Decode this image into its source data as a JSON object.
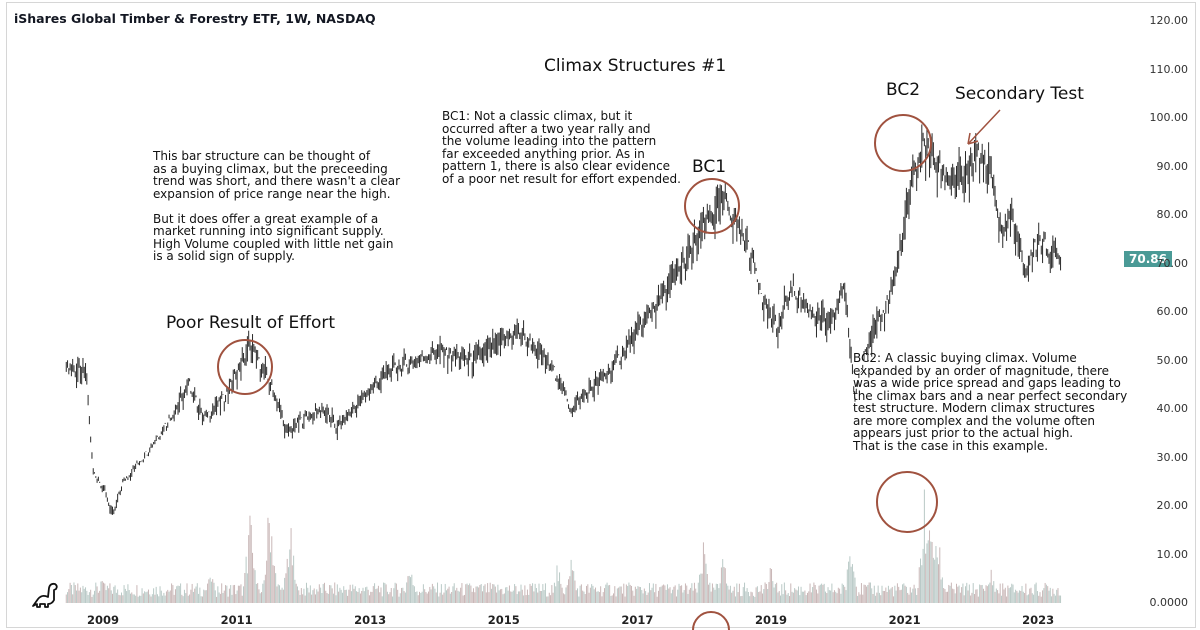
{
  "header": {
    "title": "iShares Global Timber & Forestry ETF, 1W, NASDAQ"
  },
  "annotations": {
    "chart_title": "Climax Structures #1",
    "note1": "This bar structure can be thought of\nas a buying climax, but the preceeding\ntrend was short, and there wasn't a clear\nexpansion of price range near the high.\n\nBut it does offer a great example of a\nmarket running into significant supply.\nHigh Volume coupled with little net gain\nis a solid sign of supply.",
    "note2": "BC1: Not a classic climax, but it\noccurred after a two year rally and\nthe volume leading into the pattern\nfar exceeded anything prior. As in\npattern 1, there is also clear evidence\nof a poor net result for effort expended.",
    "note3": "BC2: A classic buying climax. Volume\nexpanded by an order of magnitude, there\nwas a wide price spread and gaps leading to\nthe climax bars and a near perfect secondary\ntest structure. Modern climax structures\nare more complex and the volume often\nappears just prior to the actual high.\nThat is the case in this example.",
    "label_poor": "Poor Result of Effort",
    "label_bc1": "BC1",
    "label_bc2": "BC2",
    "label_st": "Secondary Test"
  },
  "colors": {
    "bars": "#2a2a2a",
    "volume_up": "#c9b7b7",
    "volume_down": "#b9c9c6",
    "circle": "#a0523f",
    "last_price_bg": "#4a9a96"
  },
  "logo": "tradingview-dino-icon",
  "chart_data": {
    "type": "ohlc",
    "interval": "1W",
    "last_price": "70.86",
    "y_ticks": [
      "120.00",
      "110.00",
      "100.00",
      "90.00",
      "80.00",
      "70.00",
      "60.00",
      "50.00",
      "40.00",
      "30.00",
      "20.00",
      "10.00",
      "0.0000"
    ],
    "ylim": [
      0,
      120
    ],
    "x_ticks": [
      "2009",
      "2011",
      "2013",
      "2015",
      "2017",
      "2019",
      "2021",
      "2023"
    ],
    "xlim": [
      2008.1,
      2023.9
    ],
    "price_path": [
      [
        2008.45,
        49
      ],
      [
        2008.75,
        47
      ],
      [
        2008.85,
        27
      ],
      [
        2009.0,
        24
      ],
      [
        2009.15,
        18
      ],
      [
        2009.3,
        25
      ],
      [
        2009.6,
        30
      ],
      [
        2010.0,
        38
      ],
      [
        2010.3,
        45
      ],
      [
        2010.5,
        38
      ],
      [
        2010.8,
        42
      ],
      [
        2011.1,
        50
      ],
      [
        2011.2,
        53
      ],
      [
        2011.4,
        48
      ],
      [
        2011.6,
        42
      ],
      [
        2011.75,
        35
      ],
      [
        2012.0,
        38
      ],
      [
        2012.3,
        40
      ],
      [
        2012.5,
        36
      ],
      [
        2013.0,
        44
      ],
      [
        2013.3,
        48
      ],
      [
        2013.7,
        50
      ],
      [
        2014.0,
        52
      ],
      [
        2014.5,
        50
      ],
      [
        2015.0,
        54
      ],
      [
        2015.2,
        56
      ],
      [
        2015.5,
        52
      ],
      [
        2015.8,
        47
      ],
      [
        2016.0,
        40
      ],
      [
        2016.3,
        44
      ],
      [
        2016.6,
        48
      ],
      [
        2017.0,
        56
      ],
      [
        2017.5,
        66
      ],
      [
        2017.8,
        72
      ],
      [
        2018.0,
        78
      ],
      [
        2018.3,
        83
      ],
      [
        2018.5,
        78
      ],
      [
        2018.7,
        72
      ],
      [
        2018.9,
        62
      ],
      [
        2019.1,
        56
      ],
      [
        2019.3,
        65
      ],
      [
        2019.6,
        60
      ],
      [
        2019.9,
        57
      ],
      [
        2020.1,
        66
      ],
      [
        2020.25,
        42
      ],
      [
        2020.4,
        52
      ],
      [
        2020.7,
        60
      ],
      [
        2020.9,
        70
      ],
      [
        2021.1,
        86
      ],
      [
        2021.3,
        95
      ],
      [
        2021.4,
        92
      ],
      [
        2021.6,
        88
      ],
      [
        2021.9,
        87
      ],
      [
        2022.1,
        93
      ],
      [
        2022.3,
        88
      ],
      [
        2022.45,
        76
      ],
      [
        2022.6,
        80
      ],
      [
        2022.8,
        68
      ],
      [
        2023.0,
        75
      ],
      [
        2023.2,
        72
      ],
      [
        2023.35,
        70.86
      ]
    ],
    "volume_spikes": [
      [
        2009.0,
        6
      ],
      [
        2010.6,
        8
      ],
      [
        2011.2,
        20
      ],
      [
        2011.5,
        25
      ],
      [
        2011.8,
        18
      ],
      [
        2013.6,
        10
      ],
      [
        2015.8,
        9
      ],
      [
        2016.0,
        12
      ],
      [
        2018.0,
        14
      ],
      [
        2018.3,
        12
      ],
      [
        2019.0,
        8
      ],
      [
        2020.2,
        14
      ],
      [
        2021.3,
        25
      ],
      [
        2021.4,
        22
      ],
      [
        2021.5,
        16
      ],
      [
        2022.3,
        8
      ]
    ],
    "volume_base": 2.5
  }
}
